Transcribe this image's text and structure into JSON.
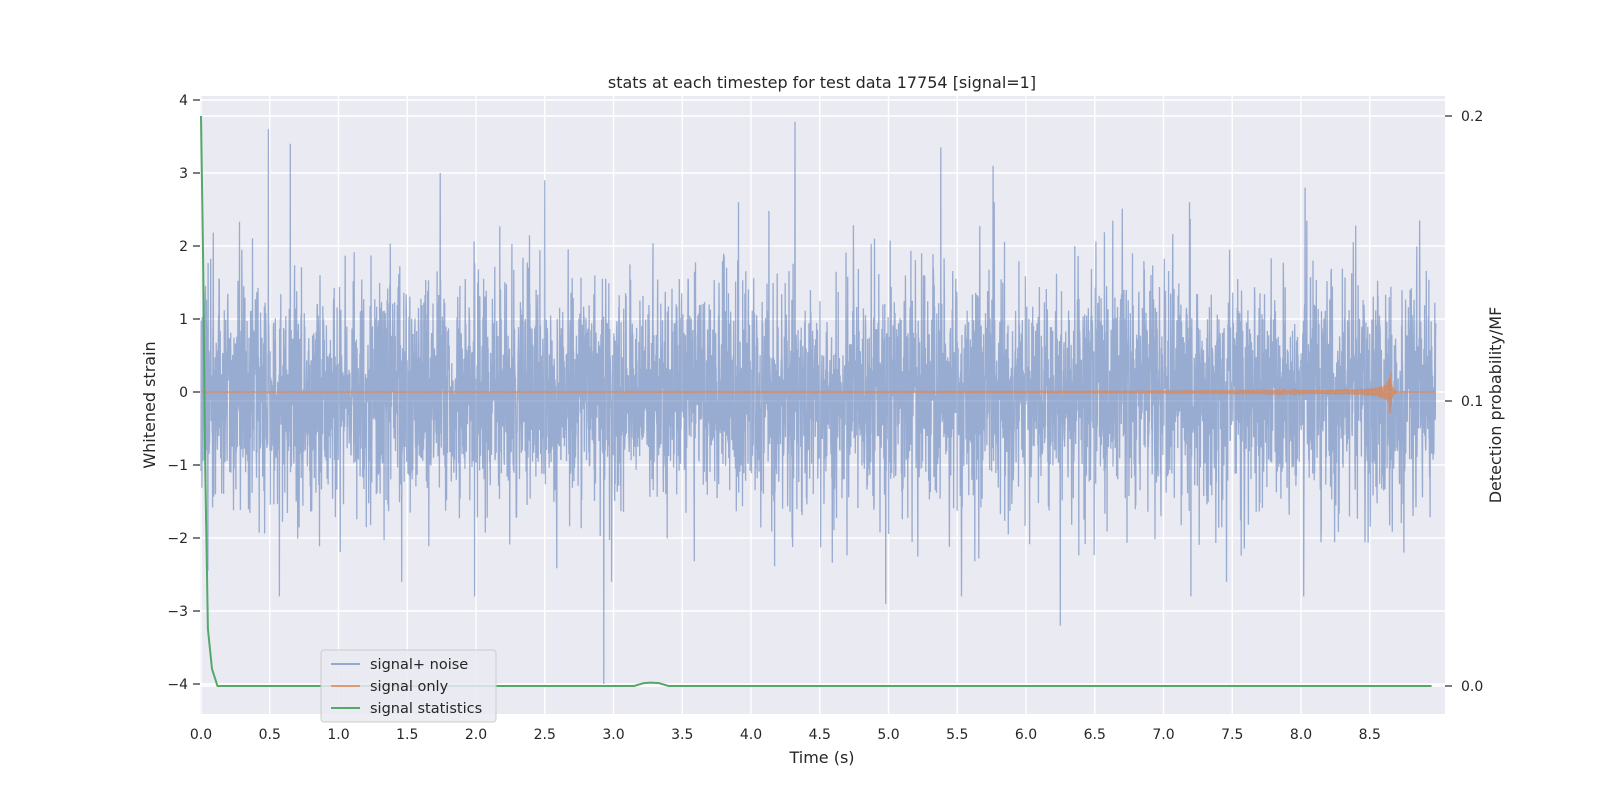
{
  "chart_data": {
    "type": "line",
    "title": "stats at each timestep for test data 17754 [signal=1]",
    "xlabel": "Time (s)",
    "ylabel": "Whitened strain",
    "y2label": "Detection probability/MF",
    "xlim": [
      0.0,
      9.0
    ],
    "ylim": [
      -4.4,
      4.1
    ],
    "y2lim": [
      -0.009,
      0.21
    ],
    "xticks": [
      "0.0",
      "0.5",
      "1.0",
      "1.5",
      "2.0",
      "2.5",
      "3.0",
      "3.5",
      "4.0",
      "4.5",
      "5.0",
      "5.5",
      "6.0",
      "6.5",
      "7.0",
      "7.5",
      "8.0",
      "8.5"
    ],
    "yticks": [
      "−4",
      "−3",
      "−2",
      "−1",
      "0",
      "1",
      "2",
      "3",
      "4"
    ],
    "y2ticks": [
      "0.0",
      "0.1",
      "0.2"
    ],
    "grid": true,
    "legend_position": "lower-left",
    "colors": {
      "background": "#eaeaf2",
      "noise": "#4c72b0",
      "signal": "#dd8452",
      "stats": "#55a868"
    },
    "series": [
      {
        "name": "signal+ noise",
        "axis": "left",
        "description": "dense noise, amplitude std approx 1",
        "peaks": [
          {
            "x": 0.49,
            "y": 3.6
          },
          {
            "x": 0.65,
            "y": 3.4
          },
          {
            "x": 1.74,
            "y": 3.0
          },
          {
            "x": 2.5,
            "y": 2.9
          },
          {
            "x": 4.32,
            "y": 3.7
          },
          {
            "x": 5.38,
            "y": 3.35
          },
          {
            "x": 5.76,
            "y": 3.1
          },
          {
            "x": 8.03,
            "y": 2.8
          }
        ],
        "troughs": [
          {
            "x": 0.57,
            "y": -2.8
          },
          {
            "x": 1.99,
            "y": -2.8
          },
          {
            "x": 2.93,
            "y": -4.0
          },
          {
            "x": 4.98,
            "y": -2.9
          },
          {
            "x": 5.53,
            "y": -2.8
          },
          {
            "x": 6.25,
            "y": -3.2
          },
          {
            "x": 7.2,
            "y": -2.8
          },
          {
            "x": 8.02,
            "y": -2.8
          }
        ]
      },
      {
        "name": "signal only",
        "axis": "left",
        "description": "chirp growing toward merger",
        "merger_time": 8.65,
        "max_amplitude": 0.3
      },
      {
        "name": "signal statistics",
        "axis": "right",
        "x": [
          0.0,
          0.015,
          0.03,
          0.05,
          0.08,
          0.12,
          3.15,
          3.22,
          3.27,
          3.33,
          3.4,
          8.95
        ],
        "y": [
          0.2,
          0.15,
          0.08,
          0.02,
          0.006,
          0.0,
          0.0,
          0.001,
          0.0012,
          0.001,
          0.0,
          0.0
        ]
      }
    ]
  }
}
